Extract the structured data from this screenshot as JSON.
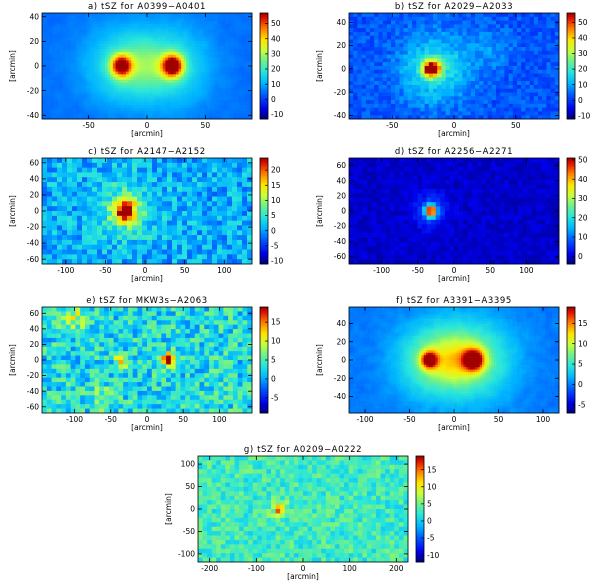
{
  "chart_data": [
    {
      "type": "heatmap",
      "title": "a) tSZ for A0399−A0401",
      "xlabel": "[arcmin]",
      "ylabel": "[arcmin]",
      "xlim": [
        -90,
        90
      ],
      "ylim": [
        -43,
        43
      ],
      "xticks": [
        -50,
        0,
        50
      ],
      "yticks": [
        -40,
        -20,
        0,
        20,
        40
      ],
      "colorbar": {
        "min": -13,
        "max": 57,
        "ticks": [
          -10,
          0,
          10,
          20,
          30,
          40,
          50
        ]
      },
      "background": 5,
      "noise": 0.03,
      "grid": [
        80,
        38
      ],
      "smooth": true,
      "sources": [
        {
          "x": -22,
          "y": 0,
          "peak": 52,
          "sigma": 6
        },
        {
          "x": 22,
          "y": 0,
          "peak": 57,
          "sigma": 6
        },
        {
          "x": -22,
          "y": 0,
          "peak": 14,
          "sigma": 22
        },
        {
          "x": 22,
          "y": 0,
          "peak": 14,
          "sigma": 22
        },
        {
          "x": 0,
          "y": 0,
          "peak": 8,
          "sigma": 14
        }
      ]
    },
    {
      "type": "heatmap",
      "title": "b) tSZ for A2029−A2033",
      "xlabel": "[arcmin]",
      "ylabel": "[arcmin]",
      "xlim": [
        -85,
        85
      ],
      "ylim": [
        -43,
        48
      ],
      "xticks": [
        -50,
        0,
        50
      ],
      "yticks": [
        -40,
        -20,
        0,
        20,
        40
      ],
      "colorbar": {
        "min": -12,
        "max": 56,
        "ticks": [
          -10,
          0,
          10,
          20,
          30,
          40,
          50
        ]
      },
      "background": 3,
      "noise": 0.05,
      "grid": [
        50,
        28
      ],
      "smooth": false,
      "sources": [
        {
          "x": -18,
          "y": 0,
          "peak": 55,
          "sigma": 5
        },
        {
          "x": -15,
          "y": 0,
          "peak": 16,
          "sigma": 20
        },
        {
          "x": 30,
          "y": 18,
          "peak": 5,
          "sigma": 12
        }
      ]
    },
    {
      "type": "heatmap",
      "title": "c) tSZ for A2147−A2152",
      "xlabel": "[arcmin]",
      "ylabel": "[arcmin]",
      "xlim": [
        -130,
        135
      ],
      "ylim": [
        -66,
        66
      ],
      "xticks": [
        -100,
        -50,
        0,
        50,
        100
      ],
      "yticks": [
        -60,
        -40,
        -20,
        0,
        20,
        40,
        60
      ],
      "colorbar": {
        "min": -11,
        "max": 24,
        "ticks": [
          -10,
          -5,
          0,
          5,
          10,
          15,
          20
        ]
      },
      "background": 1,
      "noise": 0.11,
      "grid": [
        42,
        22
      ],
      "smooth": false,
      "sources": [
        {
          "x": -25,
          "y": 0,
          "peak": 22,
          "sigma": 9
        },
        {
          "x": -25,
          "y": 0,
          "peak": 7,
          "sigma": 26
        }
      ]
    },
    {
      "type": "heatmap",
      "title": "d) tSZ for A2256−A2271",
      "xlabel": "[arcmin]",
      "ylabel": "[arcmin]",
      "xlim": [
        -145,
        145
      ],
      "ylim": [
        -70,
        70
      ],
      "xticks": [
        -100,
        -50,
        0,
        50,
        100
      ],
      "yticks": [
        -60,
        -40,
        -20,
        0,
        20,
        40,
        60
      ],
      "colorbar": {
        "min": -4,
        "max": 51,
        "ticks": [
          0,
          10,
          20,
          30,
          40,
          50
        ]
      },
      "background": 0,
      "noise": 0.03,
      "grid": [
        46,
        24
      ],
      "smooth": false,
      "sources": [
        {
          "x": -32,
          "y": 0,
          "peak": 50,
          "sigma": 5
        },
        {
          "x": -32,
          "y": 0,
          "peak": 10,
          "sigma": 14
        }
      ]
    },
    {
      "type": "heatmap",
      "title": "e) tSZ for MKW3s−A2063",
      "xlabel": "[arcmin]",
      "ylabel": "[arcmin]",
      "xlim": [
        -145,
        145
      ],
      "ylim": [
        -68,
        68
      ],
      "xticks": [
        -100,
        -50,
        0,
        50,
        100
      ],
      "yticks": [
        -60,
        -40,
        -20,
        0,
        20,
        40,
        60
      ],
      "colorbar": {
        "min": -9,
        "max": 19,
        "ticks": [
          -5,
          0,
          5,
          10,
          15
        ]
      },
      "background": 3,
      "noise": 0.15,
      "grid": [
        44,
        24
      ],
      "smooth": false,
      "sources": [
        {
          "x": 30,
          "y": 0,
          "peak": 18,
          "sigma": 6
        },
        {
          "x": -35,
          "y": 0,
          "peak": 10,
          "sigma": 6
        },
        {
          "x": -100,
          "y": 55,
          "peak": 6,
          "sigma": 12
        },
        {
          "x": -60,
          "y": -50,
          "peak": 5,
          "sigma": 10
        }
      ]
    },
    {
      "type": "heatmap",
      "title": "f) tSZ for A3391−A3395",
      "xlabel": "[arcmin]",
      "ylabel": "[arcmin]",
      "xlim": [
        -118,
        118
      ],
      "ylim": [
        -58,
        58
      ],
      "xticks": [
        -100,
        -50,
        0,
        50,
        100
      ],
      "yticks": [
        -40,
        -20,
        0,
        20,
        40
      ],
      "colorbar": {
        "min": -7,
        "max": 19,
        "ticks": [
          -5,
          0,
          5,
          10,
          15
        ]
      },
      "background": 0,
      "noise": 0.04,
      "grid": [
        90,
        44
      ],
      "smooth": true,
      "sources": [
        {
          "x": -28,
          "y": 0,
          "peak": 18,
          "sigma": 6
        },
        {
          "x": 22,
          "y": 0,
          "peak": 18,
          "sigma": 8
        },
        {
          "x": -25,
          "y": 0,
          "peak": 7,
          "sigma": 28
        },
        {
          "x": 25,
          "y": 0,
          "peak": 7,
          "sigma": 30
        },
        {
          "x": 0,
          "y": 0,
          "peak": 4,
          "sigma": 18
        }
      ]
    },
    {
      "type": "heatmap",
      "title": "g) tSZ for A0209−A0222",
      "xlabel": "[arcmin]",
      "ylabel": "[arcmin]",
      "xlim": [
        -225,
        225
      ],
      "ylim": [
        -118,
        118
      ],
      "xticks": [
        -200,
        -100,
        0,
        100,
        200
      ],
      "yticks": [
        -100,
        -50,
        0,
        50,
        100
      ],
      "colorbar": {
        "min": -12,
        "max": 19,
        "ticks": [
          -10,
          -5,
          0,
          5,
          10,
          15
        ]
      },
      "background": 3,
      "noise": 0.09,
      "grid": [
        46,
        24
      ],
      "smooth": false,
      "sources": [
        {
          "x": -50,
          "y": 0,
          "peak": 18,
          "sigma": 5
        },
        {
          "x": -50,
          "y": 0,
          "peak": 4,
          "sigma": 15
        }
      ]
    }
  ]
}
